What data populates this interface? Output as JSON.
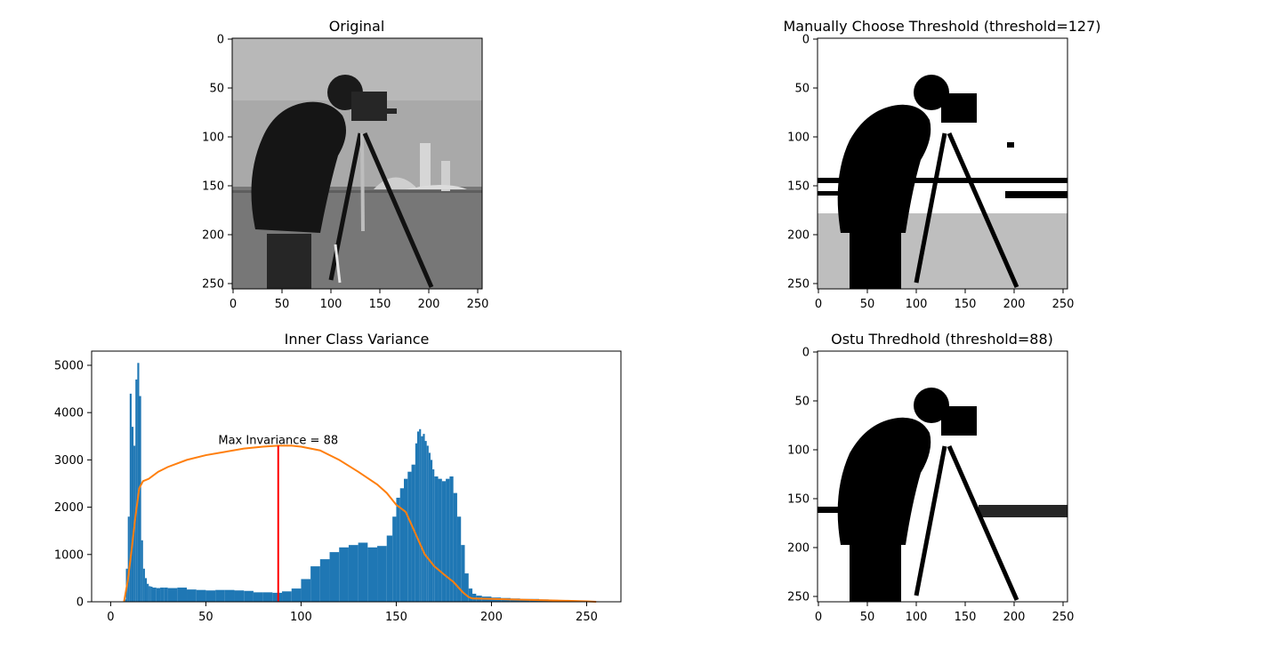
{
  "panels": {
    "original": {
      "title": "Original",
      "xticks": [
        "0",
        "50",
        "100",
        "150",
        "200",
        "250"
      ],
      "yticks": [
        "0",
        "50",
        "100",
        "150",
        "200",
        "250"
      ]
    },
    "manual": {
      "title": "Manually Choose Threshold (threshold=127)",
      "xticks": [
        "0",
        "50",
        "100",
        "150",
        "200",
        "250"
      ],
      "yticks": [
        "0",
        "50",
        "100",
        "150",
        "200",
        "250"
      ]
    },
    "otsu": {
      "title": "Ostu Thredhold (threshold=88)",
      "xticks": [
        "0",
        "50",
        "100",
        "150",
        "200",
        "250"
      ],
      "yticks": [
        "0",
        "50",
        "100",
        "150",
        "200",
        "250"
      ]
    }
  },
  "chart_data": {
    "type": "bar",
    "title": "Inner Class Variance",
    "xlabel": "",
    "ylabel": "",
    "xlim": [
      -10,
      268
    ],
    "ylim": [
      0,
      5300
    ],
    "xticks": [
      "0",
      "50",
      "100",
      "150",
      "200",
      "250"
    ],
    "yticks": [
      "0",
      "1000",
      "2000",
      "3000",
      "4000",
      "5000"
    ],
    "grid": false,
    "series": [
      {
        "kind": "histogram",
        "color": "#1f77b4",
        "x": [
          7,
          8,
          9,
          10,
          11,
          12,
          13,
          14,
          15,
          16,
          17,
          18,
          19,
          20,
          21,
          22,
          24,
          26,
          28,
          30,
          35,
          40,
          45,
          50,
          55,
          60,
          65,
          70,
          75,
          80,
          85,
          90,
          95,
          100,
          105,
          110,
          115,
          120,
          125,
          130,
          135,
          140,
          145,
          148,
          150,
          152,
          154,
          156,
          158,
          160,
          161,
          162,
          163,
          164,
          165,
          166,
          167,
          168,
          169,
          170,
          172,
          174,
          176,
          178,
          180,
          182,
          184,
          186,
          188,
          190,
          192,
          195,
          200,
          205,
          210,
          215,
          220,
          225,
          230,
          235,
          240,
          245,
          250,
          255
        ],
        "y": [
          50,
          700,
          1800,
          4400,
          3700,
          3300,
          4700,
          5050,
          4350,
          1300,
          700,
          500,
          380,
          330,
          320,
          300,
          290,
          300,
          300,
          290,
          300,
          260,
          250,
          240,
          250,
          250,
          240,
          230,
          200,
          200,
          190,
          220,
          280,
          480,
          750,
          900,
          1050,
          1150,
          1200,
          1250,
          1150,
          1180,
          1400,
          1800,
          2200,
          2400,
          2600,
          2750,
          2900,
          3350,
          3600,
          3650,
          3500,
          3550,
          3400,
          3300,
          3150,
          3000,
          2800,
          2650,
          2600,
          2550,
          2600,
          2650,
          2300,
          1800,
          1200,
          600,
          280,
          170,
          130,
          110,
          90,
          80,
          70,
          60,
          60,
          50,
          40,
          30,
          20,
          20,
          10,
          10
        ]
      },
      {
        "kind": "line",
        "color": "#ff7f0e",
        "x": [
          7,
          9,
          11,
          13,
          15,
          17,
          20,
          25,
          30,
          40,
          50,
          60,
          70,
          80,
          88,
          95,
          100,
          110,
          120,
          130,
          140,
          145,
          150,
          155,
          160,
          165,
          170,
          175,
          180,
          185,
          188,
          190,
          200,
          210,
          220,
          230,
          240,
          250,
          255
        ],
        "y": [
          0,
          450,
          1100,
          1800,
          2400,
          2550,
          2600,
          2750,
          2850,
          3000,
          3100,
          3170,
          3240,
          3280,
          3300,
          3300,
          3280,
          3200,
          3000,
          2750,
          2480,
          2300,
          2050,
          1900,
          1450,
          1000,
          750,
          580,
          420,
          200,
          100,
          70,
          60,
          50,
          40,
          30,
          20,
          10,
          0
        ]
      },
      {
        "kind": "vline",
        "color": "#ff0000",
        "x": 88,
        "y": [
          0,
          3300
        ]
      }
    ],
    "annotations": [
      {
        "text": "Max Invariance = 88",
        "x": 88,
        "y": 3300
      }
    ]
  }
}
